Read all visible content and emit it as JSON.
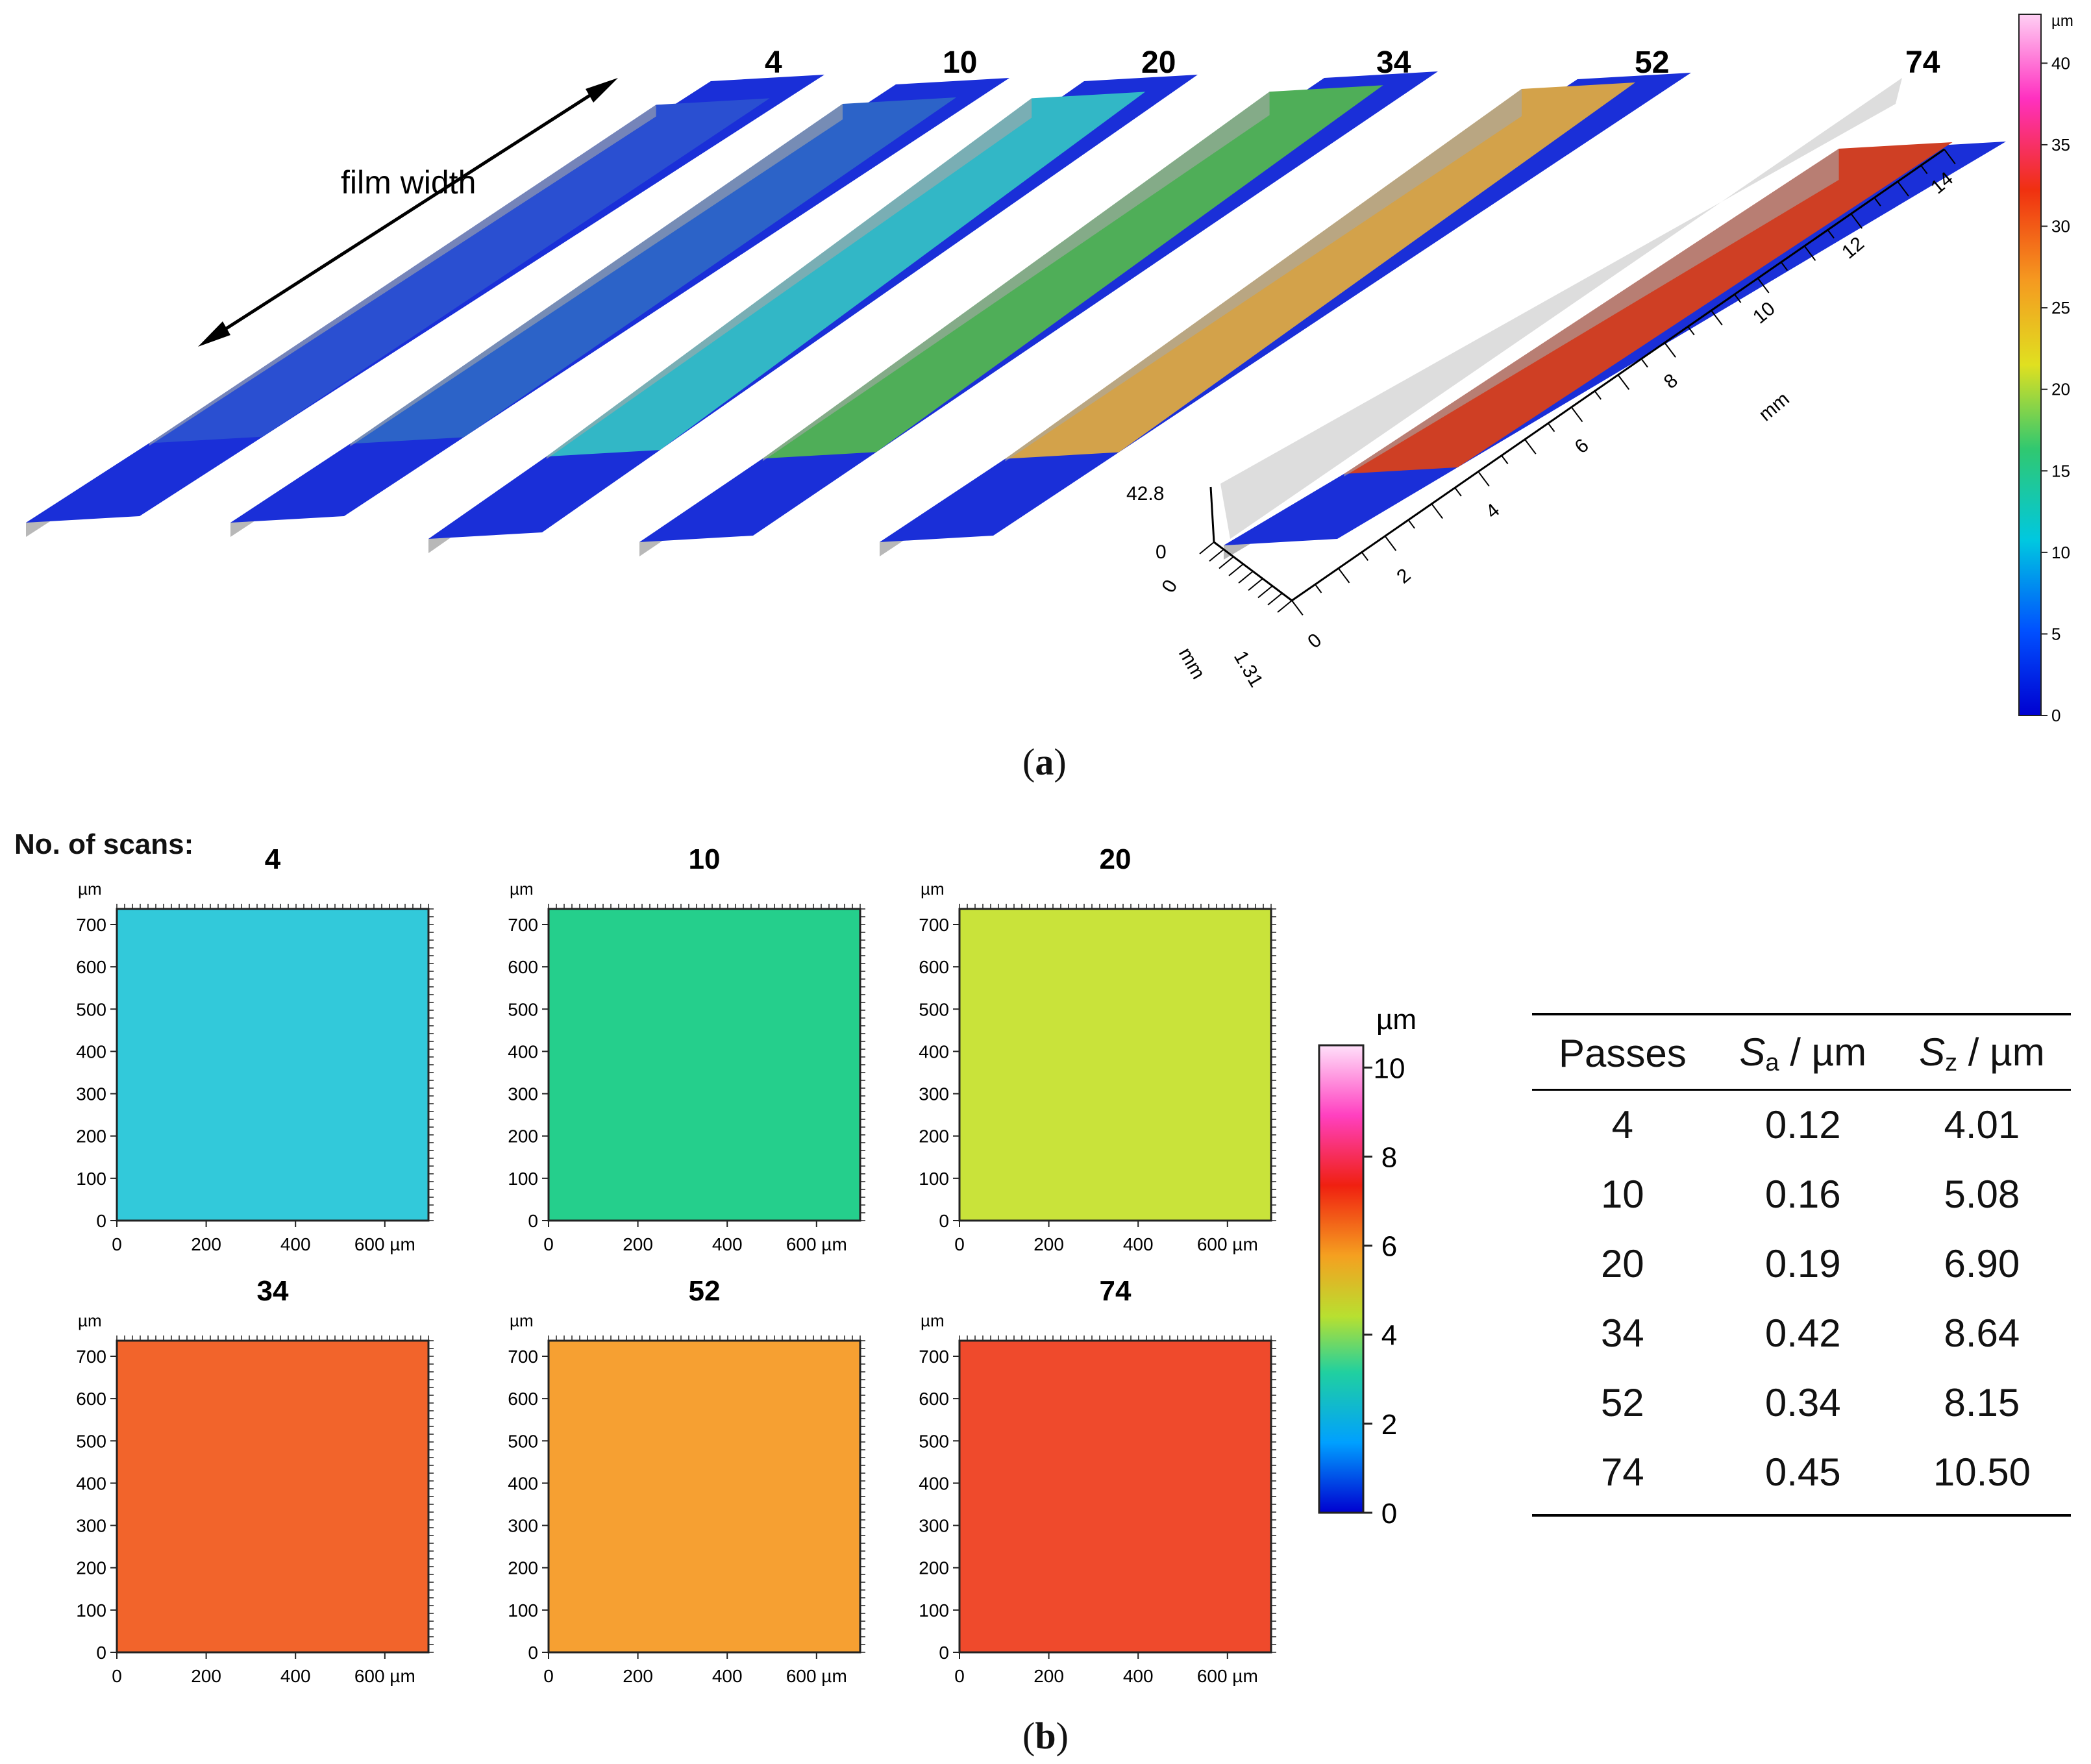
{
  "panel_a": {
    "caption_label": "a",
    "arrow_label": "film width",
    "strip_labels": [
      "4",
      "10",
      "20",
      "34",
      "52",
      "74"
    ],
    "strip_colors": [
      "#2a4fd1",
      "#2c63c8",
      "#32b7c6",
      "#4fae58",
      "#d3a24a",
      "#cf3f24"
    ],
    "axes": {
      "z_max": "42.8",
      "z_zero": "0",
      "y_zero": "0",
      "y_unit": "mm",
      "y_max": "1.31",
      "x_ticks": [
        "0",
        "2",
        "4",
        "6",
        "8",
        "10",
        "12",
        "14"
      ],
      "x_unit": "mm"
    },
    "colorbar": {
      "unit": "µm",
      "ticks": [
        "0",
        "5",
        "10",
        "15",
        "20",
        "25",
        "30",
        "35",
        "40"
      ]
    }
  },
  "panel_b": {
    "caption_label": "b",
    "row_label": "No. of scans:",
    "map_unit": "µm",
    "y_ticks": [
      "700",
      "600",
      "500",
      "400",
      "300",
      "200",
      "100",
      "0"
    ],
    "x_ticks": [
      "0",
      "200",
      "400",
      "600 µm"
    ],
    "maps": [
      {
        "title": "4",
        "color": "#32c9da"
      },
      {
        "title": "10",
        "color": "#25cf8c"
      },
      {
        "title": "20",
        "color": "#c9e33a"
      },
      {
        "title": "34",
        "color": "#f2642b"
      },
      {
        "title": "52",
        "color": "#f6a032"
      },
      {
        "title": "74",
        "color": "#ef4a2c"
      }
    ],
    "colorbar": {
      "unit": "µm",
      "ticks": [
        "0",
        "2",
        "4",
        "6",
        "8",
        "10"
      ]
    },
    "table": {
      "headers": [
        {
          "symbol": "",
          "sub": "",
          "text": "Passes"
        },
        {
          "symbol": "S",
          "sub": "a",
          "text": " / µm"
        },
        {
          "symbol": "S",
          "sub": "z",
          "text": " / µm"
        }
      ],
      "rows": [
        [
          "4",
          "0.12",
          "4.01"
        ],
        [
          "10",
          "0.16",
          "5.08"
        ],
        [
          "20",
          "0.19",
          "6.90"
        ],
        [
          "34",
          "0.42",
          "8.64"
        ],
        [
          "52",
          "0.34",
          "8.15"
        ],
        [
          "74",
          "0.45",
          "10.50"
        ]
      ]
    }
  }
}
